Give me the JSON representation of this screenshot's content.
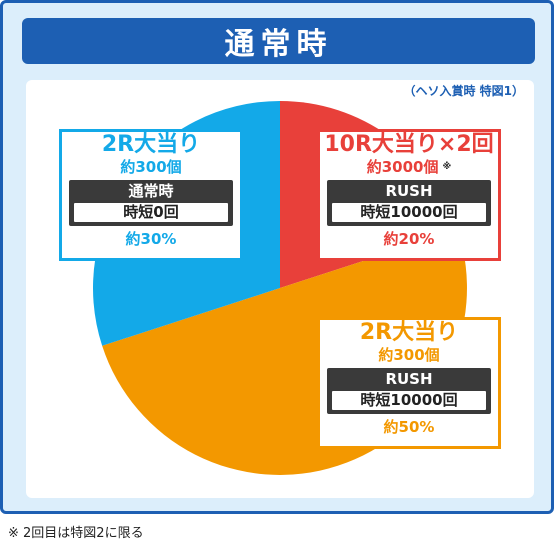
{
  "header": {
    "title": "通常時"
  },
  "subtitle": "（ヘソ入賞時 特図1）",
  "chart_data": {
    "type": "pie",
    "title": "通常時",
    "slices": [
      {
        "label": "10R大当り×2回",
        "value": 20,
        "color": "#e8403a"
      },
      {
        "label": "2R大当り",
        "value": 50,
        "color": "#f39800"
      },
      {
        "label": "2R大当り",
        "value": 30,
        "color": "#13a9e8"
      }
    ]
  },
  "boxes": {
    "top_left": {
      "title": "2R大当り",
      "payout": "約300個",
      "mode": "通常時",
      "jitan": "時短0回",
      "percent": "約30%",
      "color": "#13a9e8"
    },
    "top_right": {
      "title": "10R大当り×2回",
      "payout": "約3000個",
      "note": "※",
      "mode": "RUSH",
      "jitan": "時短10000回",
      "percent": "約20%",
      "color": "#e8403a"
    },
    "bottom_right": {
      "title": "2R大当り",
      "payout": "約300個",
      "mode": "RUSH",
      "jitan": "時短10000回",
      "percent": "約50%",
      "color": "#f39800"
    }
  },
  "footnote": "※ 2回目は特図2に限る"
}
